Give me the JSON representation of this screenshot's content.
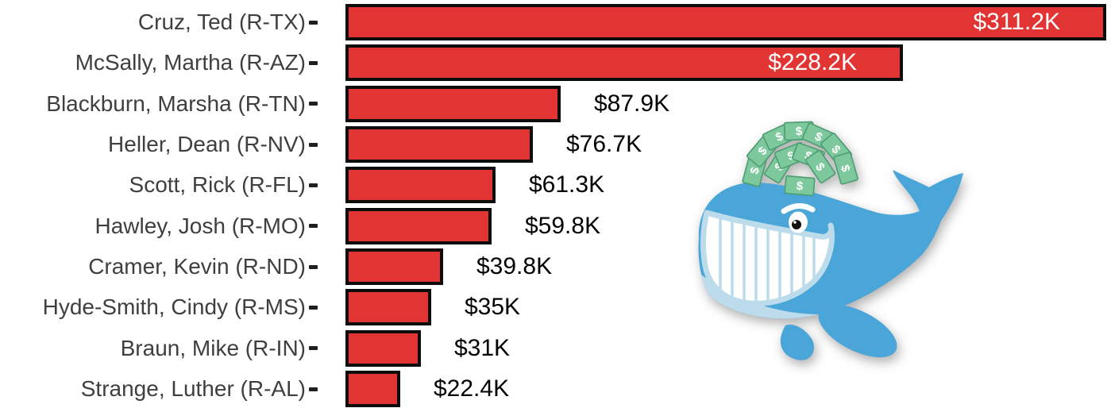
{
  "page": {
    "background": "#ffffff"
  },
  "chart_data": {
    "type": "bar",
    "orientation": "horizontal",
    "title": "",
    "xlabel": "",
    "ylabel": "",
    "xlim": [
      0,
      311.2
    ],
    "grid": false,
    "legend": false,
    "categories": [
      "Cruz, Ted (R-TX)",
      "McSally, Martha (R-AZ)",
      "Blackburn, Marsha (R-TN)",
      "Heller, Dean (R-NV)",
      "Scott, Rick (R-FL)",
      "Hawley, Josh (R-MO)",
      "Cramer, Kevin (R-ND)",
      "Hyde-Smith, Cindy (R-MS)",
      "Braun, Mike (R-IN)",
      "Strange, Luther (R-AL)"
    ],
    "values": [
      311.2,
      228.2,
      87.9,
      76.7,
      61.3,
      59.8,
      39.8,
      35,
      31,
      22.4
    ],
    "value_labels": [
      "$311.2K",
      "$228.2K",
      "$87.9K",
      "$76.7K",
      "$61.3K",
      "$59.8K",
      "$39.8K",
      "$35K",
      "$31K",
      "$22.4K"
    ],
    "value_label_inside_bar": [
      true,
      true,
      false,
      false,
      false,
      false,
      false,
      false,
      false,
      false
    ],
    "units": "USD thousands",
    "bar_color": "#e33434",
    "bar_border_color": "#0d0d0d",
    "inside_label_color": "#ffffff",
    "outside_label_color": "#000000",
    "axis_label_color": "#3f3f3f",
    "tick_color": "#1f1f1f"
  },
  "illustration": {
    "name": "whale-spouting-money",
    "money_symbol": "$",
    "colors": {
      "whale_body": "#4aa5d8",
      "whale_belly": "#bcdcec",
      "mouth_fill": "#ffffff",
      "mouth_outline": "#bcdcec",
      "money_green": "#7dc89d",
      "money_border": "#4d9c72",
      "pupil": "#111111"
    }
  }
}
